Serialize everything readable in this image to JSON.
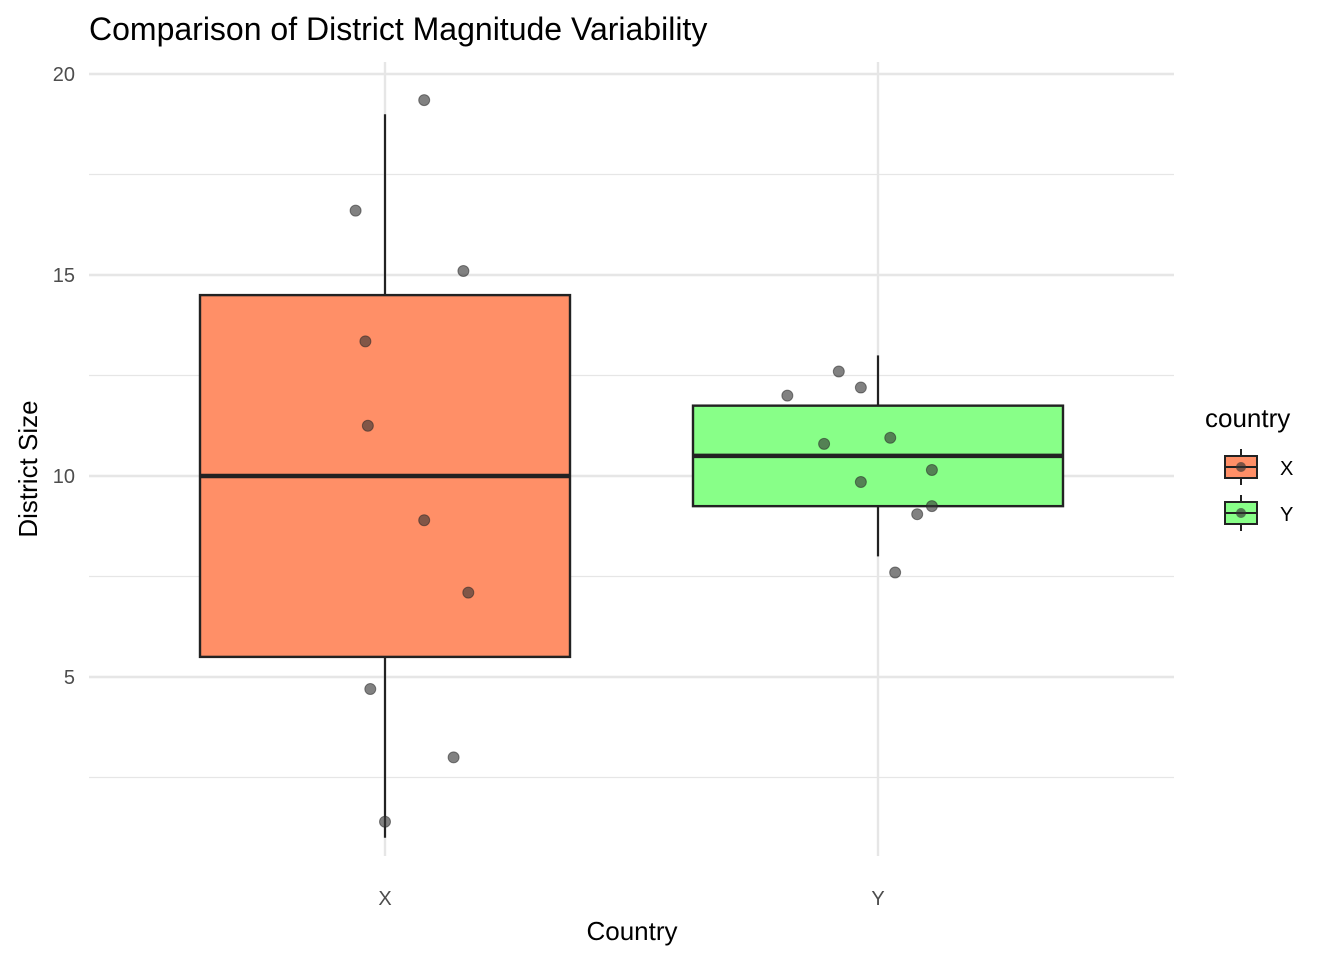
{
  "chart_data": {
    "type": "boxplot",
    "title": "Comparison of District Magnitude Variability",
    "xlabel": "Country",
    "ylabel": "District Size",
    "categories": [
      "X",
      "Y"
    ],
    "ylim": [
      0.9,
      20.3
    ],
    "yticks": [
      5,
      10,
      15,
      20
    ],
    "grid": true,
    "legend": {
      "title": "country",
      "position": "right",
      "entries": [
        "X",
        "Y"
      ]
    },
    "colors": {
      "X": "#ff8f67",
      "Y": "#88ff88",
      "box_line": "#222222",
      "point": "#333333",
      "grid": "#e6e6e6"
    },
    "boxes": [
      {
        "category": "X",
        "whisker_low": 1,
        "q1": 5.5,
        "median": 10,
        "q3": 14.5,
        "whisker_high": 19
      },
      {
        "category": "Y",
        "whisker_low": 8,
        "q1": 9.25,
        "median": 10.5,
        "q3": 11.75,
        "whisker_high": 13
      }
    ],
    "points": [
      {
        "category": "X",
        "jitter": 0.08,
        "y": 19.35
      },
      {
        "category": "X",
        "jitter": -0.06,
        "y": 16.6
      },
      {
        "category": "X",
        "jitter": 0.16,
        "y": 15.1
      },
      {
        "category": "X",
        "jitter": -0.04,
        "y": 13.35
      },
      {
        "category": "X",
        "jitter": -0.035,
        "y": 11.25
      },
      {
        "category": "X",
        "jitter": 0.08,
        "y": 8.9
      },
      {
        "category": "X",
        "jitter": 0.17,
        "y": 7.1
      },
      {
        "category": "X",
        "jitter": -0.03,
        "y": 4.7
      },
      {
        "category": "X",
        "jitter": 0.14,
        "y": 3.0
      },
      {
        "category": "X",
        "jitter": 0.0,
        "y": 1.4
      },
      {
        "category": "Y",
        "jitter": -0.08,
        "y": 12.6
      },
      {
        "category": "Y",
        "jitter": -0.035,
        "y": 12.2
      },
      {
        "category": "Y",
        "jitter": -0.185,
        "y": 12.0
      },
      {
        "category": "Y",
        "jitter": 0.025,
        "y": 10.95
      },
      {
        "category": "Y",
        "jitter": -0.11,
        "y": 10.8
      },
      {
        "category": "Y",
        "jitter": 0.11,
        "y": 10.15
      },
      {
        "category": "Y",
        "jitter": -0.035,
        "y": 9.85
      },
      {
        "category": "Y",
        "jitter": 0.11,
        "y": 9.25
      },
      {
        "category": "Y",
        "jitter": 0.08,
        "y": 9.05
      },
      {
        "category": "Y",
        "jitter": 0.035,
        "y": 7.6
      }
    ]
  }
}
